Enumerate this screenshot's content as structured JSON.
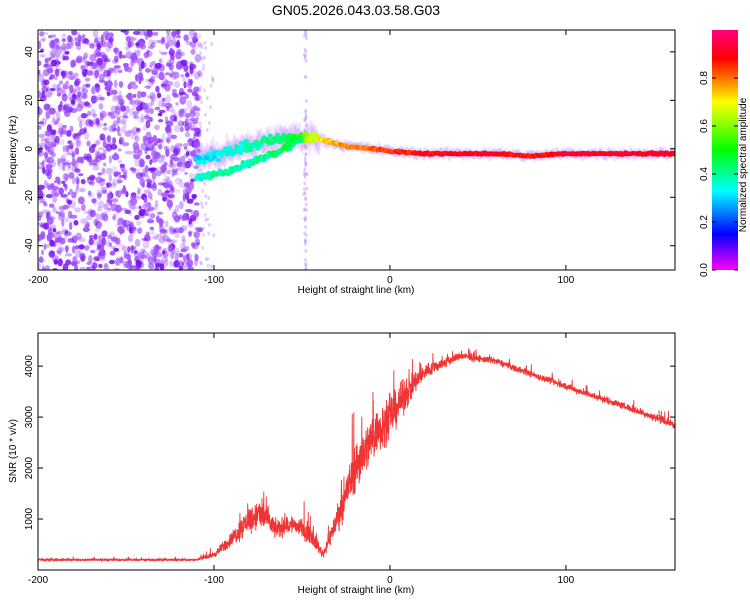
{
  "figure_title": "GN05.2026.043.03.58.G03",
  "chart_data": [
    {
      "type": "heatmap",
      "xlabel": "Height of straight line (km)",
      "ylabel": "Frequency (Hz)",
      "xlim": [
        -200,
        162
      ],
      "ylim": [
        -50,
        49
      ],
      "xticks": [
        -200,
        -100,
        0,
        100
      ],
      "yticks": [
        -40,
        -20,
        0,
        20,
        40
      ],
      "colorbar": {
        "label": "Normalized spectral amplitude",
        "range": [
          0,
          1
        ],
        "ticks": [
          0.0,
          0.2,
          0.4,
          0.6,
          0.8
        ],
        "tick_labels": [
          "0.0",
          "0.2",
          "0.4",
          "0.6",
          "0.8"
        ],
        "colors": [
          "#ff00ff",
          "#0000ff",
          "#00ffff",
          "#00ff00",
          "#ffff00",
          "#ff0000",
          "#ff0080"
        ]
      },
      "noise_region": {
        "x": [
          -200,
          -108
        ],
        "y": [
          -50,
          49
        ],
        "amplitude": [
          0.05,
          0.3
        ]
      },
      "interference_line": {
        "x": -48,
        "y": [
          -50,
          49
        ],
        "amplitude": 0.05
      },
      "ridge": [
        {
          "x": -110,
          "y": -4,
          "amplitude": 0.35
        },
        {
          "x": -95,
          "y": -2,
          "amplitude": 0.38
        },
        {
          "x": -80,
          "y": 1,
          "amplitude": 0.42
        },
        {
          "x": -70,
          "y": 3,
          "amplitude": 0.45
        },
        {
          "x": -55,
          "y": 5,
          "amplitude": 0.5
        },
        {
          "x": -45,
          "y": 5,
          "amplitude": 0.7
        },
        {
          "x": -35,
          "y": 3,
          "amplitude": 0.78
        },
        {
          "x": -25,
          "y": 1,
          "amplitude": 0.82
        },
        {
          "x": -10,
          "y": 0,
          "amplitude": 0.85
        },
        {
          "x": 0,
          "y": -1,
          "amplitude": 0.88
        },
        {
          "x": 20,
          "y": -2,
          "amplitude": 0.92
        },
        {
          "x": 60,
          "y": -2,
          "amplitude": 0.95
        },
        {
          "x": 80,
          "y": -3,
          "amplitude": 0.9
        },
        {
          "x": 100,
          "y": -2,
          "amplitude": 0.95
        },
        {
          "x": 162,
          "y": -2,
          "amplitude": 0.95
        }
      ],
      "secondary_ridge": [
        {
          "x": -110,
          "y": -12,
          "amplitude": 0.4
        },
        {
          "x": -95,
          "y": -10,
          "amplitude": 0.45
        },
        {
          "x": -80,
          "y": -6,
          "amplitude": 0.45
        },
        {
          "x": -65,
          "y": -2,
          "amplitude": 0.48
        },
        {
          "x": -50,
          "y": 4,
          "amplitude": 0.5
        }
      ]
    },
    {
      "type": "line",
      "xlabel": "Height of straight line (km)",
      "ylabel": "SNR (10 * v/v)",
      "xlim": [
        -200,
        162
      ],
      "ylim": [
        0,
        4650
      ],
      "xticks": [
        -200,
        -100,
        0,
        100
      ],
      "yticks": [
        1000,
        2000,
        3000,
        4000
      ],
      "color": "#f03434",
      "envelope": [
        {
          "x": -200,
          "mean": 200,
          "spread": 60
        },
        {
          "x": -110,
          "mean": 200,
          "spread": 60
        },
        {
          "x": -100,
          "mean": 300,
          "spread": 150
        },
        {
          "x": -90,
          "mean": 600,
          "spread": 400
        },
        {
          "x": -80,
          "mean": 1000,
          "spread": 700
        },
        {
          "x": -72,
          "mean": 1100,
          "spread": 900
        },
        {
          "x": -65,
          "mean": 800,
          "spread": 500
        },
        {
          "x": -55,
          "mean": 900,
          "spread": 500
        },
        {
          "x": -45,
          "mean": 700,
          "spread": 500
        },
        {
          "x": -38,
          "mean": 300,
          "spread": 200
        },
        {
          "x": -30,
          "mean": 1000,
          "spread": 700
        },
        {
          "x": -20,
          "mean": 2000,
          "spread": 1300
        },
        {
          "x": -10,
          "mean": 2600,
          "spread": 1300
        },
        {
          "x": 0,
          "mean": 3000,
          "spread": 1100
        },
        {
          "x": 10,
          "mean": 3500,
          "spread": 800
        },
        {
          "x": 20,
          "mean": 3900,
          "spread": 400
        },
        {
          "x": 40,
          "mean": 4200,
          "spread": 200
        },
        {
          "x": 60,
          "mean": 4100,
          "spread": 180
        },
        {
          "x": 80,
          "mean": 3850,
          "spread": 180
        },
        {
          "x": 100,
          "mean": 3600,
          "spread": 180
        },
        {
          "x": 130,
          "mean": 3250,
          "spread": 180
        },
        {
          "x": 162,
          "mean": 2850,
          "spread": 200
        }
      ]
    }
  ]
}
